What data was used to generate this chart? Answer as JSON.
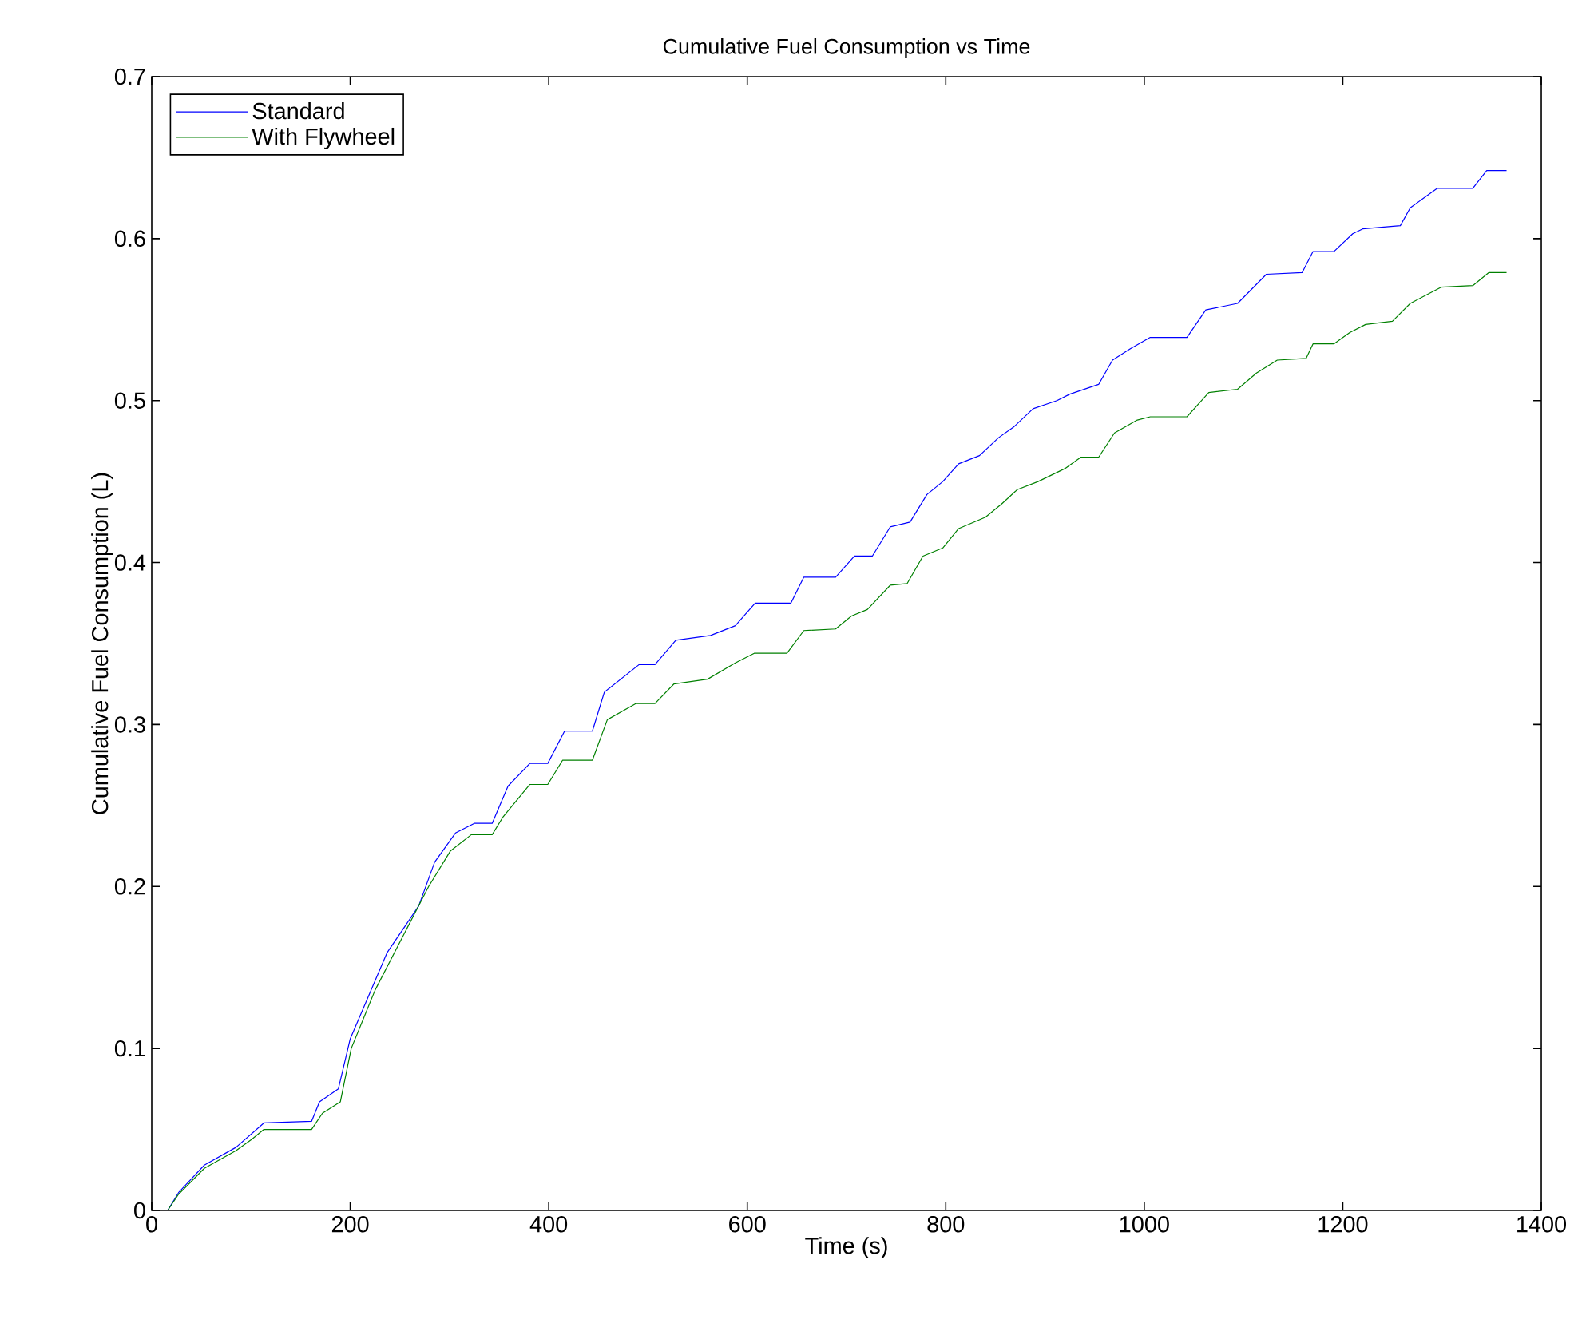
{
  "chart_data": {
    "type": "line",
    "title": "Cumulative Fuel Consumption vs Time",
    "xlabel": "Time (s)",
    "ylabel": "Cumulative Fuel Consumption (L)",
    "xlim": [
      0,
      1400
    ],
    "ylim": [
      0,
      0.7
    ],
    "xticks": [
      0,
      200,
      400,
      600,
      800,
      1000,
      1200,
      1400
    ],
    "yticks": [
      0,
      0.1,
      0.2,
      0.3,
      0.4,
      0.5,
      0.6,
      0.7
    ],
    "grid": false,
    "legend": "top left",
    "marker": "none",
    "line_style": "solid",
    "series": [
      {
        "name": "Standard",
        "color": "#0000ff",
        "x": [
          16,
          27,
          53,
          85,
          113,
          161,
          169,
          188,
          200,
          221,
          237,
          269,
          285,
          306,
          325,
          343,
          359,
          381,
          399,
          416,
          444,
          456,
          491,
          507,
          528,
          563,
          588,
          608,
          644,
          657,
          689,
          708,
          726,
          744,
          764,
          781,
          797,
          813,
          834,
          853,
          869,
          888,
          912,
          925,
          954,
          968,
          986,
          1006,
          1043,
          1062,
          1094,
          1123,
          1159,
          1170,
          1191,
          1210,
          1220,
          1258,
          1268,
          1295,
          1331,
          1345,
          1365
        ],
        "values": [
          0,
          0.011,
          0.028,
          0.039,
          0.054,
          0.055,
          0.067,
          0.075,
          0.106,
          0.136,
          0.159,
          0.188,
          0.215,
          0.233,
          0.239,
          0.239,
          0.262,
          0.276,
          0.276,
          0.296,
          0.296,
          0.32,
          0.337,
          0.337,
          0.352,
          0.355,
          0.361,
          0.375,
          0.375,
          0.391,
          0.391,
          0.404,
          0.404,
          0.422,
          0.425,
          0.442,
          0.45,
          0.461,
          0.466,
          0.477,
          0.484,
          0.495,
          0.5,
          0.504,
          0.51,
          0.525,
          0.532,
          0.539,
          0.539,
          0.556,
          0.56,
          0.578,
          0.579,
          0.592,
          0.592,
          0.603,
          0.606,
          0.608,
          0.619,
          0.631,
          0.631,
          0.642,
          0.642
        ]
      },
      {
        "name": "With Flywheel",
        "color": "#008000",
        "x": [
          16,
          27,
          53,
          85,
          101,
          113,
          161,
          172,
          190,
          201,
          225,
          279,
          301,
          322,
          343,
          354,
          381,
          399,
          414,
          444,
          459,
          488,
          507,
          526,
          560,
          588,
          607,
          640,
          657,
          689,
          705,
          721,
          744,
          761,
          777,
          797,
          813,
          840,
          856,
          872,
          893,
          920,
          936,
          954,
          970,
          993,
          1006,
          1043,
          1065,
          1094,
          1113,
          1134,
          1163,
          1170,
          1191,
          1207,
          1223,
          1250,
          1268,
          1299,
          1331,
          1347,
          1365
        ],
        "values": [
          0,
          0.01,
          0.026,
          0.037,
          0.044,
          0.05,
          0.05,
          0.06,
          0.067,
          0.1,
          0.136,
          0.2,
          0.222,
          0.232,
          0.232,
          0.243,
          0.263,
          0.263,
          0.278,
          0.278,
          0.303,
          0.313,
          0.313,
          0.325,
          0.328,
          0.338,
          0.344,
          0.344,
          0.358,
          0.359,
          0.367,
          0.371,
          0.386,
          0.387,
          0.404,
          0.409,
          0.421,
          0.428,
          0.436,
          0.445,
          0.45,
          0.458,
          0.465,
          0.465,
          0.48,
          0.488,
          0.49,
          0.49,
          0.505,
          0.507,
          0.517,
          0.525,
          0.526,
          0.535,
          0.535,
          0.542,
          0.547,
          0.549,
          0.56,
          0.57,
          0.571,
          0.579,
          0.579
        ]
      }
    ]
  }
}
